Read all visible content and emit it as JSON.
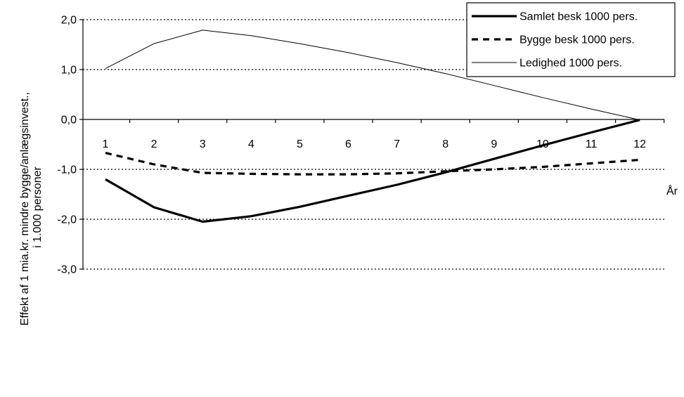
{
  "chart_data": {
    "type": "line",
    "x": [
      1,
      2,
      3,
      4,
      5,
      6,
      7,
      8,
      9,
      10,
      11,
      12
    ],
    "x_tick_labels": [
      "1",
      "2",
      "3",
      "4",
      "5",
      "6",
      "7",
      "8",
      "9",
      "10",
      "11",
      "12"
    ],
    "xlabel": "År",
    "ylabel_lines": [
      "Effekt af 1 mia.kr. mindre bygge/anlægsinvest.,",
      "i 1.000 personer"
    ],
    "ylim": [
      -3.0,
      2.0
    ],
    "y_ticks": [
      2.0,
      1.0,
      0.0,
      -1.0,
      -2.0,
      -3.0
    ],
    "y_tick_labels": [
      "2,0",
      "1,0",
      "0,0",
      "-1,0",
      "-2,0",
      "-3,0"
    ],
    "grid": "horizontal-dotted",
    "legend_position": "top-right",
    "series": [
      {
        "name": "Samlet besk 1000 pers.",
        "style": "thick-solid",
        "values": [
          -1.2,
          -1.76,
          -2.05,
          -1.94,
          -1.75,
          -1.53,
          -1.31,
          -1.06,
          -0.79,
          -0.52,
          -0.26,
          -0.01
        ]
      },
      {
        "name": "Bygge besk 1000 pers.",
        "style": "dashed",
        "values": [
          -0.67,
          -0.9,
          -1.07,
          -1.09,
          -1.1,
          -1.1,
          -1.08,
          -1.04,
          -1.0,
          -0.95,
          -0.88,
          -0.81
        ]
      },
      {
        "name": "Ledighed 1000 pers.",
        "style": "thin-solid",
        "values": [
          1.02,
          1.52,
          1.79,
          1.68,
          1.52,
          1.34,
          1.14,
          0.92,
          0.68,
          0.44,
          0.21,
          -0.01
        ]
      }
    ]
  }
}
